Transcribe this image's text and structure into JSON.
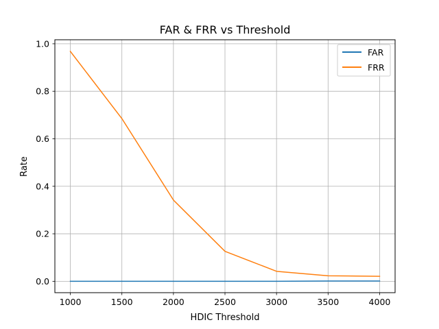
{
  "chart_data": {
    "type": "line",
    "title": "FAR & FRR vs Threshold",
    "xlabel": "HDIC Threshold",
    "ylabel": "Rate",
    "x": [
      1000,
      1500,
      2000,
      2500,
      3000,
      3500,
      4000
    ],
    "series": [
      {
        "name": "FAR",
        "color": "#1f77b4",
        "values": [
          0.0,
          0.0,
          0.0,
          0.0,
          0.0,
          0.001,
          0.001
        ]
      },
      {
        "name": "FRR",
        "color": "#ff7f0e",
        "values": [
          0.968,
          0.685,
          0.342,
          0.126,
          0.042,
          0.023,
          0.021
        ]
      }
    ],
    "xticks": [
      1000,
      1500,
      2000,
      2500,
      3000,
      3500,
      4000
    ],
    "yticks": [
      "0.0",
      "0.2",
      "0.4",
      "0.6",
      "0.8",
      "1.0"
    ],
    "xlim": [
      850,
      4150
    ],
    "ylim": [
      -0.048,
      1.017
    ],
    "grid": true,
    "legend": "top-right"
  }
}
